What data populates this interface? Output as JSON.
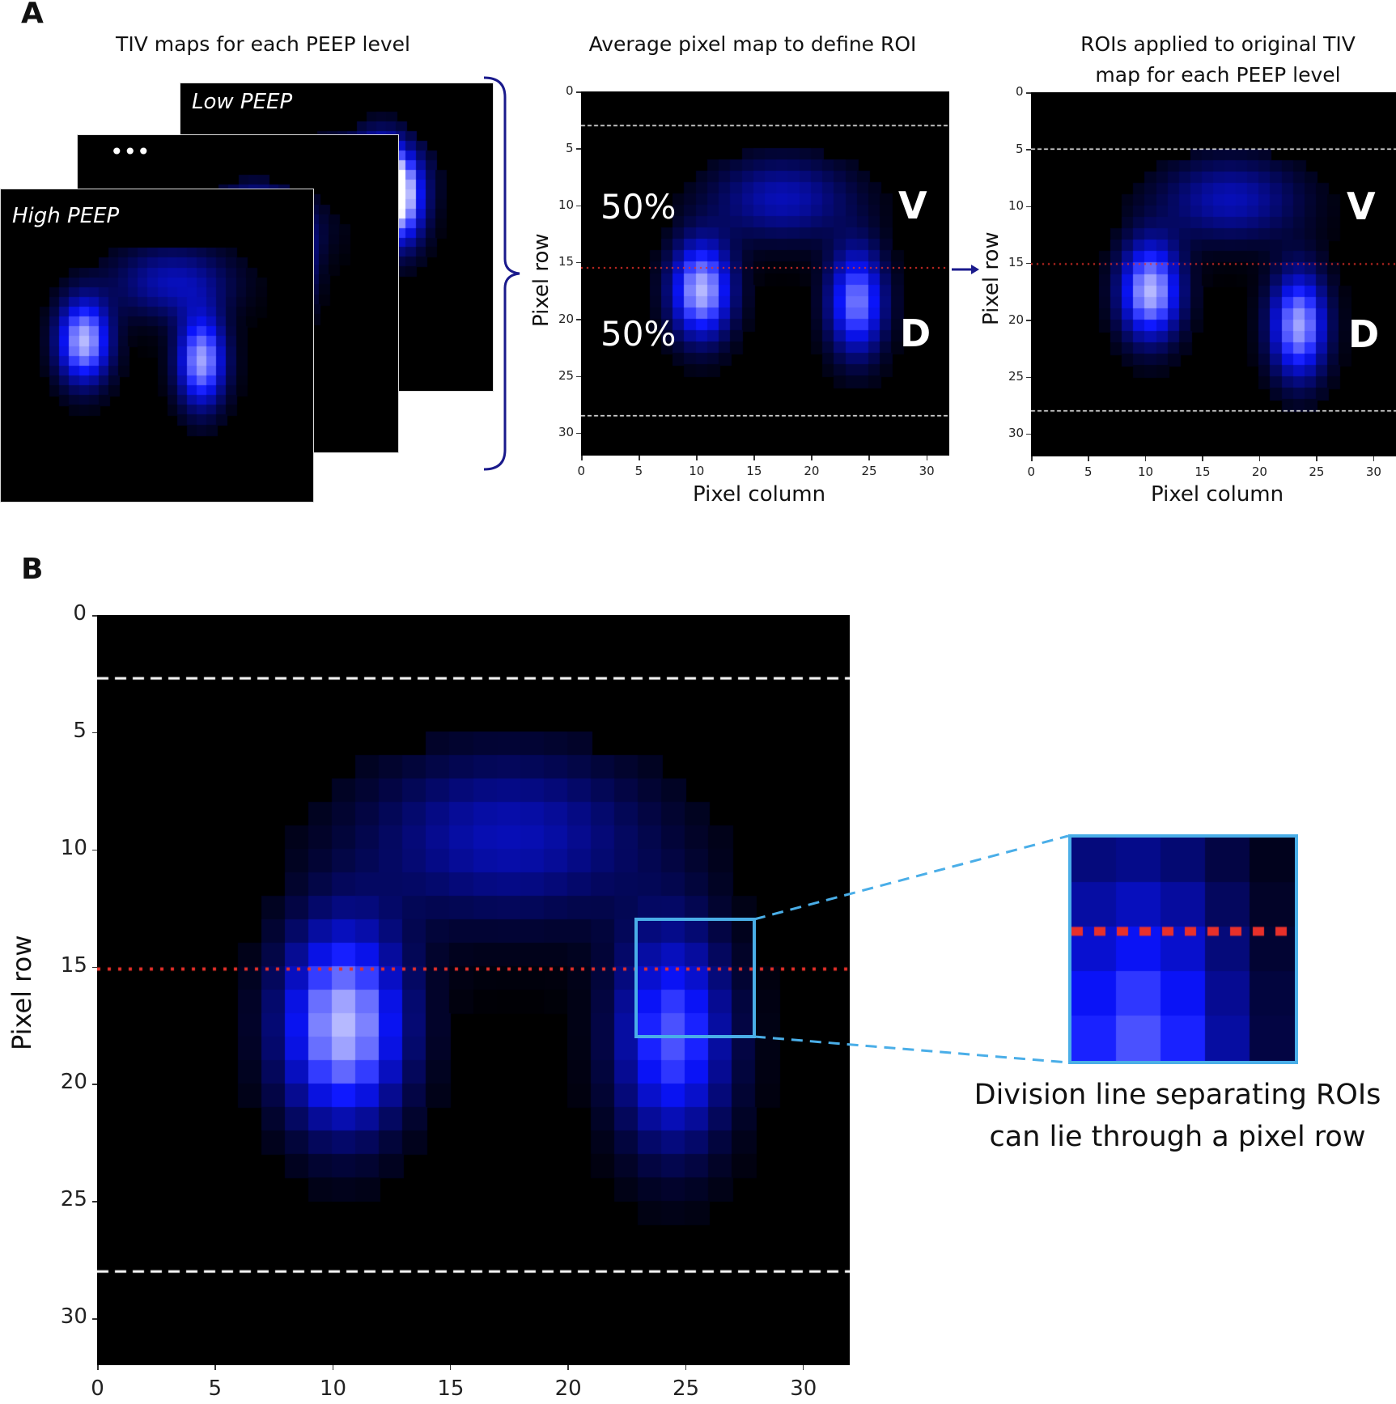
{
  "panel_a": {
    "letter": "A",
    "stack": {
      "title": "TIV maps for each PEEP level",
      "labels": {
        "low": "Low PEEP",
        "middle": "•••",
        "high": "High PEEP"
      }
    },
    "average_map": {
      "title": "Average pixel map to define ROI",
      "ylabel": "Pixel row",
      "xlabel": "Pixel column",
      "upper_pct": "50%",
      "lower_pct": "50%",
      "ventral_label": "V",
      "dorsal_label": "D",
      "yticks": [
        "0",
        "5",
        "10",
        "15",
        "20",
        "25",
        "30"
      ],
      "xticks": [
        "0",
        "5",
        "10",
        "15",
        "20",
        "25",
        "30"
      ]
    },
    "roi_map": {
      "title_line1": "ROIs applied to original TIV",
      "title_line2": "map for each PEEP level",
      "ylabel": "Pixel row",
      "xlabel": "Pixel column",
      "ventral_label": "V",
      "dorsal_label": "D",
      "yticks": [
        "0",
        "5",
        "10",
        "15",
        "20",
        "25",
        "30"
      ],
      "xticks": [
        "0",
        "5",
        "10",
        "15",
        "20",
        "25",
        "30"
      ]
    }
  },
  "panel_b": {
    "letter": "B",
    "ylabel": "Pixel row",
    "yticks": [
      "0",
      "5",
      "10",
      "15",
      "20",
      "25",
      "30"
    ],
    "xticks": [
      "0",
      "5",
      "10",
      "15",
      "20",
      "25",
      "30"
    ],
    "caption_line1": "Division line separating ROIs",
    "caption_line2": "can lie through a pixel row"
  },
  "colors": {
    "background": "#000000",
    "roi_boundary": "#ffffff",
    "division_line": "#e8302a",
    "zoom_box": "#4aaee8",
    "bracket": "#1a1a8c"
  },
  "chart_data": [
    {
      "type": "heatmap",
      "title": "Average pixel map to define ROI",
      "xlabel": "Pixel column",
      "ylabel": "Pixel row",
      "xlim": [
        0,
        32
      ],
      "ylim": [
        32,
        0
      ],
      "roi_top_row": 3,
      "roi_bottom_row": 28.5,
      "division_row": 15.5,
      "annotations": [
        "50%",
        "50%",
        "V",
        "D"
      ]
    },
    {
      "type": "heatmap",
      "title": "ROIs applied to original TIV map for each PEEP level",
      "xlabel": "Pixel column",
      "ylabel": "Pixel row",
      "xlim": [
        0,
        32
      ],
      "ylim": [
        32,
        0
      ],
      "roi_top_row": 5,
      "roi_bottom_row": 28,
      "division_row": 15.1,
      "annotations": [
        "V",
        "D"
      ]
    },
    {
      "type": "heatmap",
      "title": "",
      "xlabel": "",
      "ylabel": "Pixel row",
      "xlim": [
        0,
        32
      ],
      "ylim": [
        32,
        0
      ],
      "roi_top_row": 2.7,
      "roi_bottom_row": 28,
      "division_row": 15.1,
      "zoom_region": {
        "col_start": 23,
        "col_end": 28,
        "row_start": 13,
        "row_end": 18
      },
      "annotations": [
        "Division line separating ROIs can lie through a pixel row"
      ]
    }
  ]
}
